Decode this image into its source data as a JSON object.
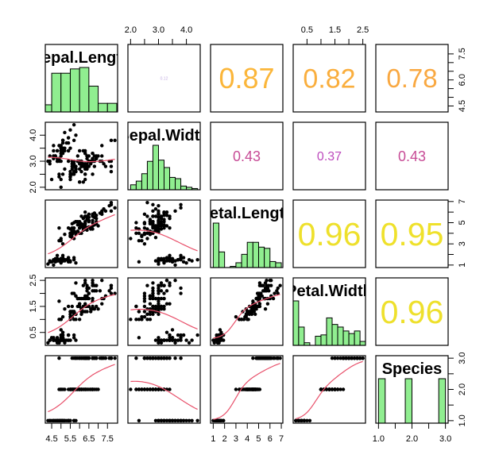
{
  "chart_data": {
    "type": "scatter",
    "subtype": "scatterplot-matrix",
    "dataset": "iris",
    "title": "",
    "variables": [
      {
        "key": "sepal_length",
        "label": "Sepal.Length",
        "range": [
          4.3,
          7.9
        ],
        "hist_start": 4.0,
        "hist_step": 0.5,
        "ticks": [
          4.5,
          5,
          5.5,
          6,
          6.5,
          7,
          7.5
        ]
      },
      {
        "key": "sepal_width",
        "label": "Sepal.Width",
        "range": [
          2.0,
          4.4
        ],
        "hist_start": 2.0,
        "hist_step": 0.2,
        "ticks": [
          2,
          2.5,
          3,
          3.5,
          4
        ]
      },
      {
        "key": "petal_length",
        "label": "Petal.Length",
        "range": [
          1.0,
          6.9
        ],
        "hist_start": 1.0,
        "hist_step": 0.5,
        "ticks": [
          1,
          2,
          3,
          4,
          5,
          6,
          7
        ]
      },
      {
        "key": "petal_width",
        "label": "Petal.Width",
        "range": [
          0.1,
          2.5
        ],
        "hist_start": 0.0,
        "hist_step": 0.2,
        "ticks": [
          0.5,
          1,
          1.5,
          2,
          2.5
        ]
      },
      {
        "key": "species",
        "label": "Species",
        "range": [
          1,
          3
        ],
        "hist_start": 1.0,
        "hist_step": 0.2,
        "ticks": [
          1,
          1.5,
          2,
          2.5,
          3
        ]
      }
    ],
    "axes": {
      "top": [
        {
          "col": 1,
          "labels": [
            "2.0",
            "3.0",
            "4.0"
          ],
          "at": [
            2,
            3,
            4
          ]
        },
        {
          "col": 3,
          "labels": [
            "0.5",
            "1.5",
            "2.5"
          ],
          "at": [
            0.5,
            1.5,
            2.5
          ]
        }
      ],
      "bottom": [
        {
          "col": 0,
          "labels": [
            "4.5",
            "5.5",
            "6.5",
            "7.5"
          ],
          "at": [
            4.5,
            5.5,
            6.5,
            7.5
          ]
        },
        {
          "col": 2,
          "labels": [
            "1",
            "2",
            "3",
            "4",
            "5",
            "6",
            "7"
          ],
          "at": [
            1,
            2,
            3,
            4,
            5,
            6,
            7
          ]
        },
        {
          "col": 4,
          "labels": [
            "1.0",
            "2.0",
            "3.0"
          ],
          "at": [
            1,
            2,
            3
          ]
        }
      ],
      "left": [
        {
          "row": 1,
          "labels": [
            "2.0",
            "3.0",
            "4.0"
          ],
          "at": [
            2,
            3,
            4
          ]
        },
        {
          "row": 3,
          "labels": [
            "0.5",
            "1.5",
            "2.5"
          ],
          "at": [
            0.5,
            1.5,
            2.5
          ]
        }
      ],
      "right": [
        {
          "row": 0,
          "labels": [
            "4.5",
            "6.0",
            "7.5"
          ],
          "at": [
            4.5,
            6,
            7.5
          ]
        },
        {
          "row": 2,
          "labels": [
            "1",
            "3",
            "5",
            "7"
          ],
          "at": [
            1,
            3,
            5,
            7
          ]
        },
        {
          "row": 4,
          "labels": [
            "1.0",
            "2.0",
            "3.0"
          ],
          "at": [
            1,
            2,
            3
          ]
        }
      ]
    },
    "correlations": [
      {
        "row": 0,
        "col": 1,
        "label": "0.12",
        "color": "#c3aee3",
        "size": 5
      },
      {
        "row": 0,
        "col": 2,
        "label": "0.87",
        "color": "#fbb63a",
        "size": 36
      },
      {
        "row": 0,
        "col": 3,
        "label": "0.82",
        "color": "#faae3d",
        "size": 34
      },
      {
        "row": 0,
        "col": 4,
        "label": "0.78",
        "color": "#f9a841",
        "size": 33
      },
      {
        "row": 1,
        "col": 2,
        "label": "0.43",
        "color": "#c74b96",
        "size": 18
      },
      {
        "row": 1,
        "col": 3,
        "label": "0.37",
        "color": "#bd4bbd",
        "size": 16
      },
      {
        "row": 1,
        "col": 4,
        "label": "0.43",
        "color": "#c74b96",
        "size": 18
      },
      {
        "row": 2,
        "col": 3,
        "label": "0.96",
        "color": "#eee02c",
        "size": 41
      },
      {
        "row": 2,
        "col": 4,
        "label": "0.95",
        "color": "#efe12b",
        "size": 41
      },
      {
        "row": 3,
        "col": 4,
        "label": "0.96",
        "color": "#eee02c",
        "size": 41
      }
    ],
    "colors": {
      "hist_fill": "#90ee90",
      "hist_border": "#000000",
      "point": "#000000",
      "smooth_line": "#e8506a",
      "panel_border": "#000000",
      "text": "#000000",
      "background": "#ffffff"
    },
    "points": {
      "sepal_length": [
        5.1,
        4.9,
        4.7,
        4.6,
        5.0,
        5.4,
        4.6,
        5.0,
        4.4,
        4.9,
        5.4,
        4.8,
        4.8,
        4.3,
        5.8,
        5.7,
        5.4,
        5.1,
        5.7,
        5.1,
        5.4,
        5.1,
        4.6,
        5.1,
        4.8,
        5.0,
        5.0,
        5.2,
        5.2,
        4.7,
        4.8,
        5.4,
        5.2,
        5.5,
        4.9,
        5.0,
        5.5,
        4.9,
        4.4,
        5.1,
        5.0,
        4.5,
        4.4,
        5.0,
        5.1,
        4.8,
        5.1,
        4.6,
        5.3,
        5.0,
        7.0,
        6.4,
        6.9,
        5.5,
        6.5,
        5.7,
        6.3,
        4.9,
        6.6,
        5.2,
        5.0,
        5.9,
        6.0,
        6.1,
        5.6,
        6.7,
        5.6,
        5.8,
        6.2,
        5.6,
        5.9,
        6.1,
        6.3,
        6.1,
        6.4,
        6.6,
        6.8,
        6.7,
        6.0,
        5.7,
        5.5,
        5.5,
        5.8,
        6.0,
        5.4,
        6.0,
        6.7,
        6.3,
        5.6,
        5.5,
        5.5,
        6.1,
        5.8,
        5.0,
        5.6,
        5.7,
        5.7,
        6.2,
        5.1,
        5.7,
        6.3,
        5.8,
        7.1,
        6.3,
        6.5,
        7.6,
        4.9,
        7.3,
        6.7,
        7.2,
        6.5,
        6.4,
        6.8,
        5.7,
        5.8,
        6.4,
        6.5,
        7.7,
        7.7,
        6.0,
        6.9,
        5.6,
        7.7,
        6.3,
        6.7,
        7.2,
        6.2,
        6.1,
        6.4,
        7.2,
        7.4,
        7.9,
        6.4,
        6.3,
        6.1,
        7.7,
        6.3,
        6.4,
        6.0,
        6.9,
        6.7,
        6.9,
        5.8,
        6.8,
        6.7,
        6.7,
        6.3,
        6.5,
        6.2,
        5.9
      ],
      "sepal_width": [
        3.5,
        3.0,
        3.2,
        3.1,
        3.6,
        3.9,
        3.4,
        3.4,
        2.9,
        3.1,
        3.7,
        3.4,
        3.0,
        3.0,
        4.0,
        4.4,
        3.9,
        3.5,
        3.8,
        3.8,
        3.4,
        3.7,
        3.6,
        3.3,
        3.4,
        3.0,
        3.4,
        3.5,
        3.4,
        3.2,
        3.1,
        3.4,
        4.1,
        4.2,
        3.1,
        3.2,
        3.5,
        3.6,
        3.0,
        3.4,
        3.5,
        2.3,
        3.2,
        3.5,
        3.8,
        3.0,
        3.8,
        3.2,
        3.7,
        3.3,
        3.2,
        3.2,
        3.1,
        2.3,
        2.8,
        2.8,
        3.3,
        2.4,
        2.9,
        2.7,
        2.0,
        3.0,
        2.2,
        2.9,
        2.9,
        3.1,
        3.0,
        2.7,
        2.2,
        2.5,
        3.2,
        2.8,
        2.5,
        2.8,
        2.9,
        3.0,
        2.8,
        3.0,
        2.9,
        2.6,
        2.4,
        2.4,
        2.7,
        2.7,
        3.0,
        3.4,
        3.1,
        2.3,
        3.0,
        2.5,
        2.6,
        3.0,
        2.6,
        2.3,
        2.7,
        3.0,
        2.9,
        2.9,
        2.5,
        2.8,
        3.3,
        2.7,
        3.0,
        2.9,
        3.0,
        3.0,
        2.5,
        2.9,
        2.5,
        3.6,
        3.2,
        2.7,
        3.0,
        2.5,
        2.8,
        3.2,
        3.0,
        3.8,
        2.6,
        2.2,
        3.2,
        2.8,
        2.8,
        2.7,
        3.3,
        3.2,
        2.8,
        3.0,
        2.8,
        3.0,
        2.8,
        3.8,
        2.8,
        2.8,
        2.6,
        3.0,
        3.4,
        3.1,
        3.0,
        3.1,
        3.1,
        3.1,
        2.7,
        3.2,
        3.3,
        3.0,
        2.5,
        3.0,
        3.4,
        3.0
      ],
      "petal_length": [
        1.4,
        1.4,
        1.3,
        1.5,
        1.4,
        1.7,
        1.4,
        1.5,
        1.4,
        1.5,
        1.5,
        1.6,
        1.4,
        1.1,
        1.2,
        1.5,
        1.3,
        1.4,
        1.7,
        1.5,
        1.7,
        1.5,
        1.0,
        1.7,
        1.9,
        1.6,
        1.6,
        1.5,
        1.4,
        1.6,
        1.6,
        1.5,
        1.5,
        1.4,
        1.5,
        1.2,
        1.3,
        1.4,
        1.3,
        1.5,
        1.3,
        1.3,
        1.3,
        1.6,
        1.9,
        1.4,
        1.6,
        1.4,
        1.5,
        1.4,
        4.7,
        4.5,
        4.9,
        4.0,
        4.6,
        4.5,
        4.7,
        3.3,
        4.6,
        3.9,
        3.5,
        4.2,
        4.0,
        4.7,
        3.6,
        4.4,
        4.5,
        4.1,
        4.5,
        3.9,
        4.8,
        4.0,
        4.9,
        4.7,
        4.3,
        4.4,
        4.8,
        5.0,
        4.5,
        3.5,
        3.8,
        3.7,
        3.9,
        5.1,
        4.5,
        4.5,
        4.7,
        4.4,
        4.1,
        4.0,
        4.4,
        4.6,
        4.0,
        3.3,
        4.2,
        4.2,
        4.2,
        4.3,
        3.0,
        4.1,
        6.0,
        5.1,
        5.9,
        5.6,
        5.8,
        6.6,
        4.5,
        6.3,
        5.8,
        6.1,
        5.1,
        5.3,
        5.5,
        5.0,
        5.1,
        5.3,
        5.5,
        6.7,
        6.9,
        5.0,
        5.7,
        4.9,
        6.7,
        4.9,
        5.7,
        6.0,
        4.8,
        4.9,
        5.6,
        5.8,
        6.1,
        6.4,
        5.6,
        5.1,
        5.6,
        6.1,
        5.6,
        5.5,
        4.8,
        5.4,
        5.6,
        5.1,
        5.1,
        5.9,
        5.7,
        5.2,
        5.0,
        5.2,
        5.4,
        5.1
      ],
      "petal_width": [
        0.2,
        0.2,
        0.2,
        0.2,
        0.2,
        0.4,
        0.3,
        0.2,
        0.2,
        0.1,
        0.2,
        0.2,
        0.1,
        0.1,
        0.2,
        0.4,
        0.4,
        0.3,
        0.3,
        0.3,
        0.2,
        0.4,
        0.2,
        0.5,
        0.2,
        0.2,
        0.4,
        0.2,
        0.2,
        0.2,
        0.2,
        0.4,
        0.1,
        0.2,
        0.2,
        0.2,
        0.2,
        0.1,
        0.2,
        0.2,
        0.3,
        0.3,
        0.2,
        0.6,
        0.4,
        0.3,
        0.2,
        0.2,
        0.2,
        0.2,
        1.4,
        1.5,
        1.5,
        1.3,
        1.5,
        1.3,
        1.6,
        1.0,
        1.3,
        1.4,
        1.0,
        1.5,
        1.0,
        1.4,
        1.3,
        1.4,
        1.5,
        1.0,
        1.5,
        1.1,
        1.8,
        1.3,
        1.5,
        1.2,
        1.3,
        1.4,
        1.4,
        1.7,
        1.5,
        1.0,
        1.1,
        1.0,
        1.2,
        1.6,
        1.5,
        1.6,
        1.5,
        1.3,
        1.3,
        1.3,
        1.2,
        1.4,
        1.2,
        1.0,
        1.3,
        1.2,
        1.3,
        1.3,
        1.1,
        1.3,
        2.5,
        1.9,
        2.1,
        1.8,
        2.2,
        2.1,
        1.7,
        1.8,
        1.8,
        2.5,
        2.0,
        1.9,
        2.1,
        2.0,
        2.4,
        2.3,
        1.8,
        2.2,
        2.3,
        1.5,
        2.3,
        2.0,
        2.0,
        1.8,
        2.1,
        1.8,
        1.8,
        1.8,
        2.1,
        1.6,
        1.9,
        2.0,
        2.2,
        1.5,
        1.4,
        2.3,
        2.4,
        1.8,
        1.8,
        2.1,
        2.4,
        2.3,
        1.9,
        2.3,
        2.5,
        2.3,
        1.9,
        2.0,
        2.3,
        1.8
      ],
      "species": [
        1,
        1,
        1,
        1,
        1,
        1,
        1,
        1,
        1,
        1,
        1,
        1,
        1,
        1,
        1,
        1,
        1,
        1,
        1,
        1,
        1,
        1,
        1,
        1,
        1,
        1,
        1,
        1,
        1,
        1,
        1,
        1,
        1,
        1,
        1,
        1,
        1,
        1,
        1,
        1,
        1,
        1,
        1,
        1,
        1,
        1,
        1,
        1,
        1,
        1,
        2,
        2,
        2,
        2,
        2,
        2,
        2,
        2,
        2,
        2,
        2,
        2,
        2,
        2,
        2,
        2,
        2,
        2,
        2,
        2,
        2,
        2,
        2,
        2,
        2,
        2,
        2,
        2,
        2,
        2,
        2,
        2,
        2,
        2,
        2,
        2,
        2,
        2,
        2,
        2,
        2,
        2,
        2,
        2,
        2,
        2,
        2,
        2,
        2,
        2,
        3,
        3,
        3,
        3,
        3,
        3,
        3,
        3,
        3,
        3,
        3,
        3,
        3,
        3,
        3,
        3,
        3,
        3,
        3,
        3,
        3,
        3,
        3,
        3,
        3,
        3,
        3,
        3,
        3,
        3,
        3,
        3,
        3,
        3,
        3,
        3,
        3,
        3,
        3,
        3,
        3,
        3,
        3,
        3,
        3,
        3,
        3,
        3,
        3,
        3
      ]
    }
  }
}
